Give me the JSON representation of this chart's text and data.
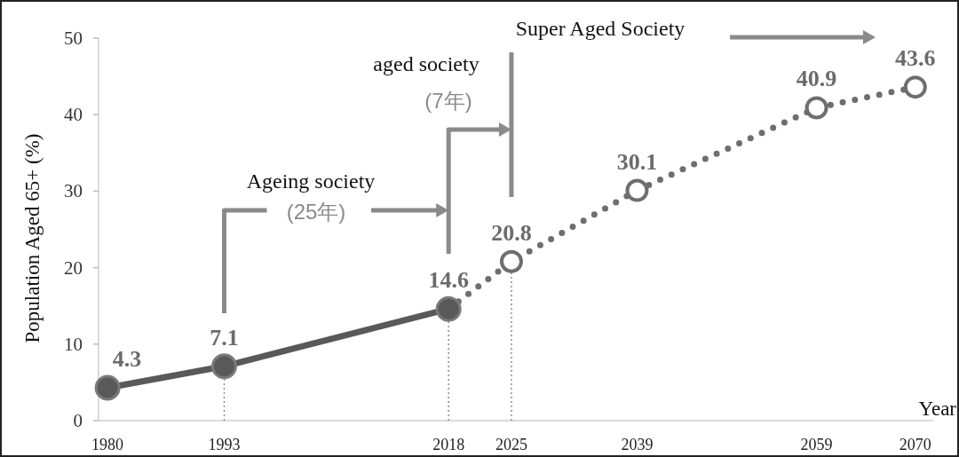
{
  "chart_data": {
    "type": "line",
    "xlabel": "Year",
    "ylabel": "Population Aged 65+ (%)",
    "xlim": [
      1979,
      2072
    ],
    "xticks": [
      1980,
      1993,
      2018,
      2025,
      2039,
      2059,
      2070
    ],
    "ylim": [
      0,
      50
    ],
    "yticks": [
      0,
      10,
      20,
      30,
      40,
      50
    ],
    "marker": "circle",
    "series": [
      {
        "color": "#595959",
        "line_style": "solid",
        "x": [
          1980,
          1993,
          2018
        ],
        "values": [
          4.3,
          7.1,
          14.6
        ],
        "value_labels": [
          "4.3",
          "7.1",
          "14.6"
        ]
      },
      {
        "color": "#6e6e6e",
        "line_style": "dotted",
        "x": [
          2018,
          2025,
          2039,
          2059,
          2070
        ],
        "values": [
          14.6,
          20.8,
          30.1,
          40.9,
          43.6
        ],
        "value_labels": [
          null,
          "20.8",
          "30.1",
          "40.9",
          "43.6"
        ]
      }
    ],
    "ref_lines": [
      {
        "axis": "x",
        "value": 1993,
        "line_style": "dotted",
        "color": "#8c8c8c"
      },
      {
        "axis": "x",
        "value": 2018,
        "line_style": "dotted",
        "color": "#8c8c8c"
      },
      {
        "axis": "x",
        "value": 2025,
        "line_style": "dotted",
        "color": "#8c8c8c"
      }
    ],
    "annotations": [
      "Ageing society",
      "(25年)",
      "aged society",
      "(7年)",
      "Super Aged Society"
    ]
  }
}
